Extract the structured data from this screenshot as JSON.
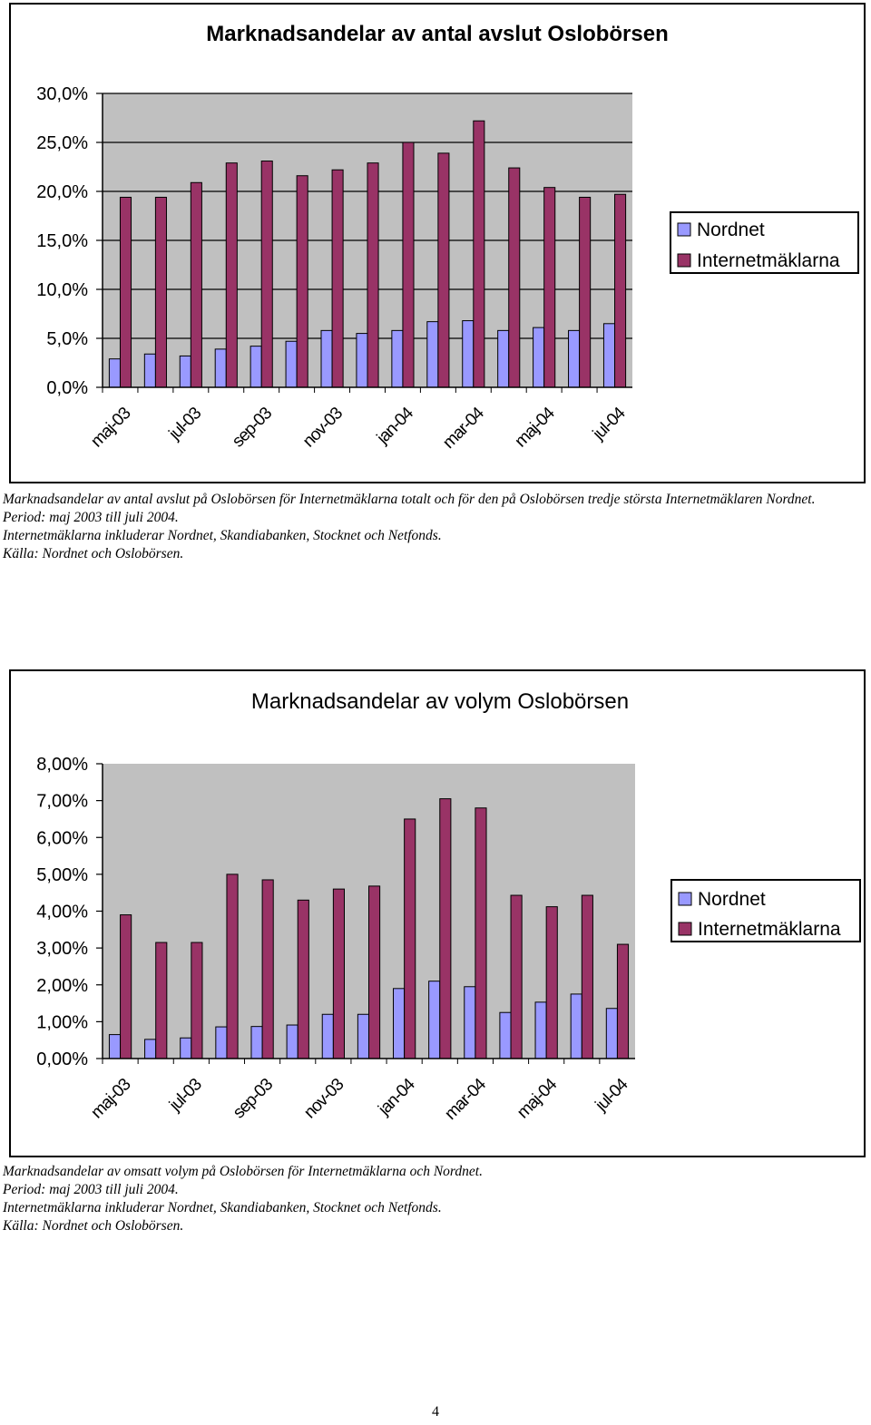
{
  "chart_data": [
    {
      "type": "bar",
      "title": "Marknadsandelar av antal avslut Oslobörsen",
      "categories": [
        "maj-03",
        "jun-03",
        "jul-03",
        "aug-03",
        "sep-03",
        "okt-03",
        "nov-03",
        "dec-03",
        "jan-04",
        "feb-04",
        "mar-04",
        "apr-04",
        "maj-04",
        "jun-04",
        "jul-04"
      ],
      "x_tick_labels": [
        "maj-03",
        "jul-03",
        "sep-03",
        "nov-03",
        "jan-04",
        "mar-04",
        "maj-04",
        "jul-04"
      ],
      "y_tick_labels": [
        "0,0%",
        "5,0%",
        "10,0%",
        "15,0%",
        "20,0%",
        "25,0%",
        "30,0%"
      ],
      "ylim": [
        0,
        30
      ],
      "grid": true,
      "legend_position": "right",
      "series": [
        {
          "name": "Nordnet",
          "color": "#9999ff",
          "values": [
            2.9,
            3.4,
            3.2,
            3.9,
            4.2,
            4.7,
            5.8,
            5.5,
            5.8,
            6.7,
            6.8,
            5.8,
            6.1,
            5.8,
            6.5
          ]
        },
        {
          "name": "Internetmäklarna",
          "color": "#993366",
          "values": [
            19.4,
            19.4,
            20.9,
            22.9,
            23.1,
            21.6,
            22.2,
            22.9,
            25.0,
            23.9,
            27.2,
            22.4,
            20.4,
            19.4,
            19.7
          ]
        }
      ]
    },
    {
      "type": "bar",
      "title": "Marknadsandelar av volym Oslobörsen",
      "categories": [
        "maj-03",
        "jun-03",
        "jul-03",
        "aug-03",
        "sep-03",
        "okt-03",
        "nov-03",
        "dec-03",
        "jan-04",
        "feb-04",
        "mar-04",
        "apr-04",
        "maj-04",
        "jun-04",
        "jul-04"
      ],
      "x_tick_labels": [
        "maj-03",
        "jul-03",
        "sep-03",
        "nov-03",
        "jan-04",
        "mar-04",
        "maj-04",
        "jul-04"
      ],
      "y_tick_labels": [
        "0,00%",
        "1,00%",
        "2,00%",
        "3,00%",
        "4,00%",
        "5,00%",
        "6,00%",
        "7,00%",
        "8,00%"
      ],
      "ylim": [
        0,
        8
      ],
      "grid": false,
      "legend_position": "right",
      "series": [
        {
          "name": "Nordnet",
          "color": "#9999ff",
          "values": [
            0.65,
            0.52,
            0.56,
            0.86,
            0.87,
            0.91,
            1.2,
            1.2,
            1.9,
            2.1,
            1.95,
            1.25,
            1.53,
            1.75,
            1.36
          ]
        },
        {
          "name": "Internetmäklarna",
          "color": "#993366",
          "values": [
            3.9,
            3.15,
            3.15,
            5.0,
            4.85,
            4.3,
            4.6,
            4.68,
            6.5,
            7.05,
            6.8,
            4.43,
            4.12,
            4.43,
            3.1
          ]
        }
      ]
    }
  ],
  "captions": {
    "chart1": {
      "line1": "Marknadsandelar av antal avslut på Oslobörsen för Internetmäklarna totalt och för den på Oslobörsen tredje största Internetmäklaren Nordnet.",
      "line2": "Period: maj 2003 till juli 2004.",
      "line3": "Internetmäklarna inkluderar Nordnet, Skandiabanken, Stocknet och Netfonds.",
      "line4": "Källa:   Nordnet och Oslobörsen."
    },
    "chart2": {
      "line1": "Marknadsandelar av omsatt volym på Oslobörsen för Internetmäklarna och Nordnet.",
      "line2": "Period: maj 2003 till juli 2004.",
      "line3": "Internetmäklarna inkluderar Nordnet, Skandiabanken, Stocknet och Netfonds.",
      "line4": "Källa:   Nordnet och Oslobörsen."
    }
  },
  "page_number": "4"
}
